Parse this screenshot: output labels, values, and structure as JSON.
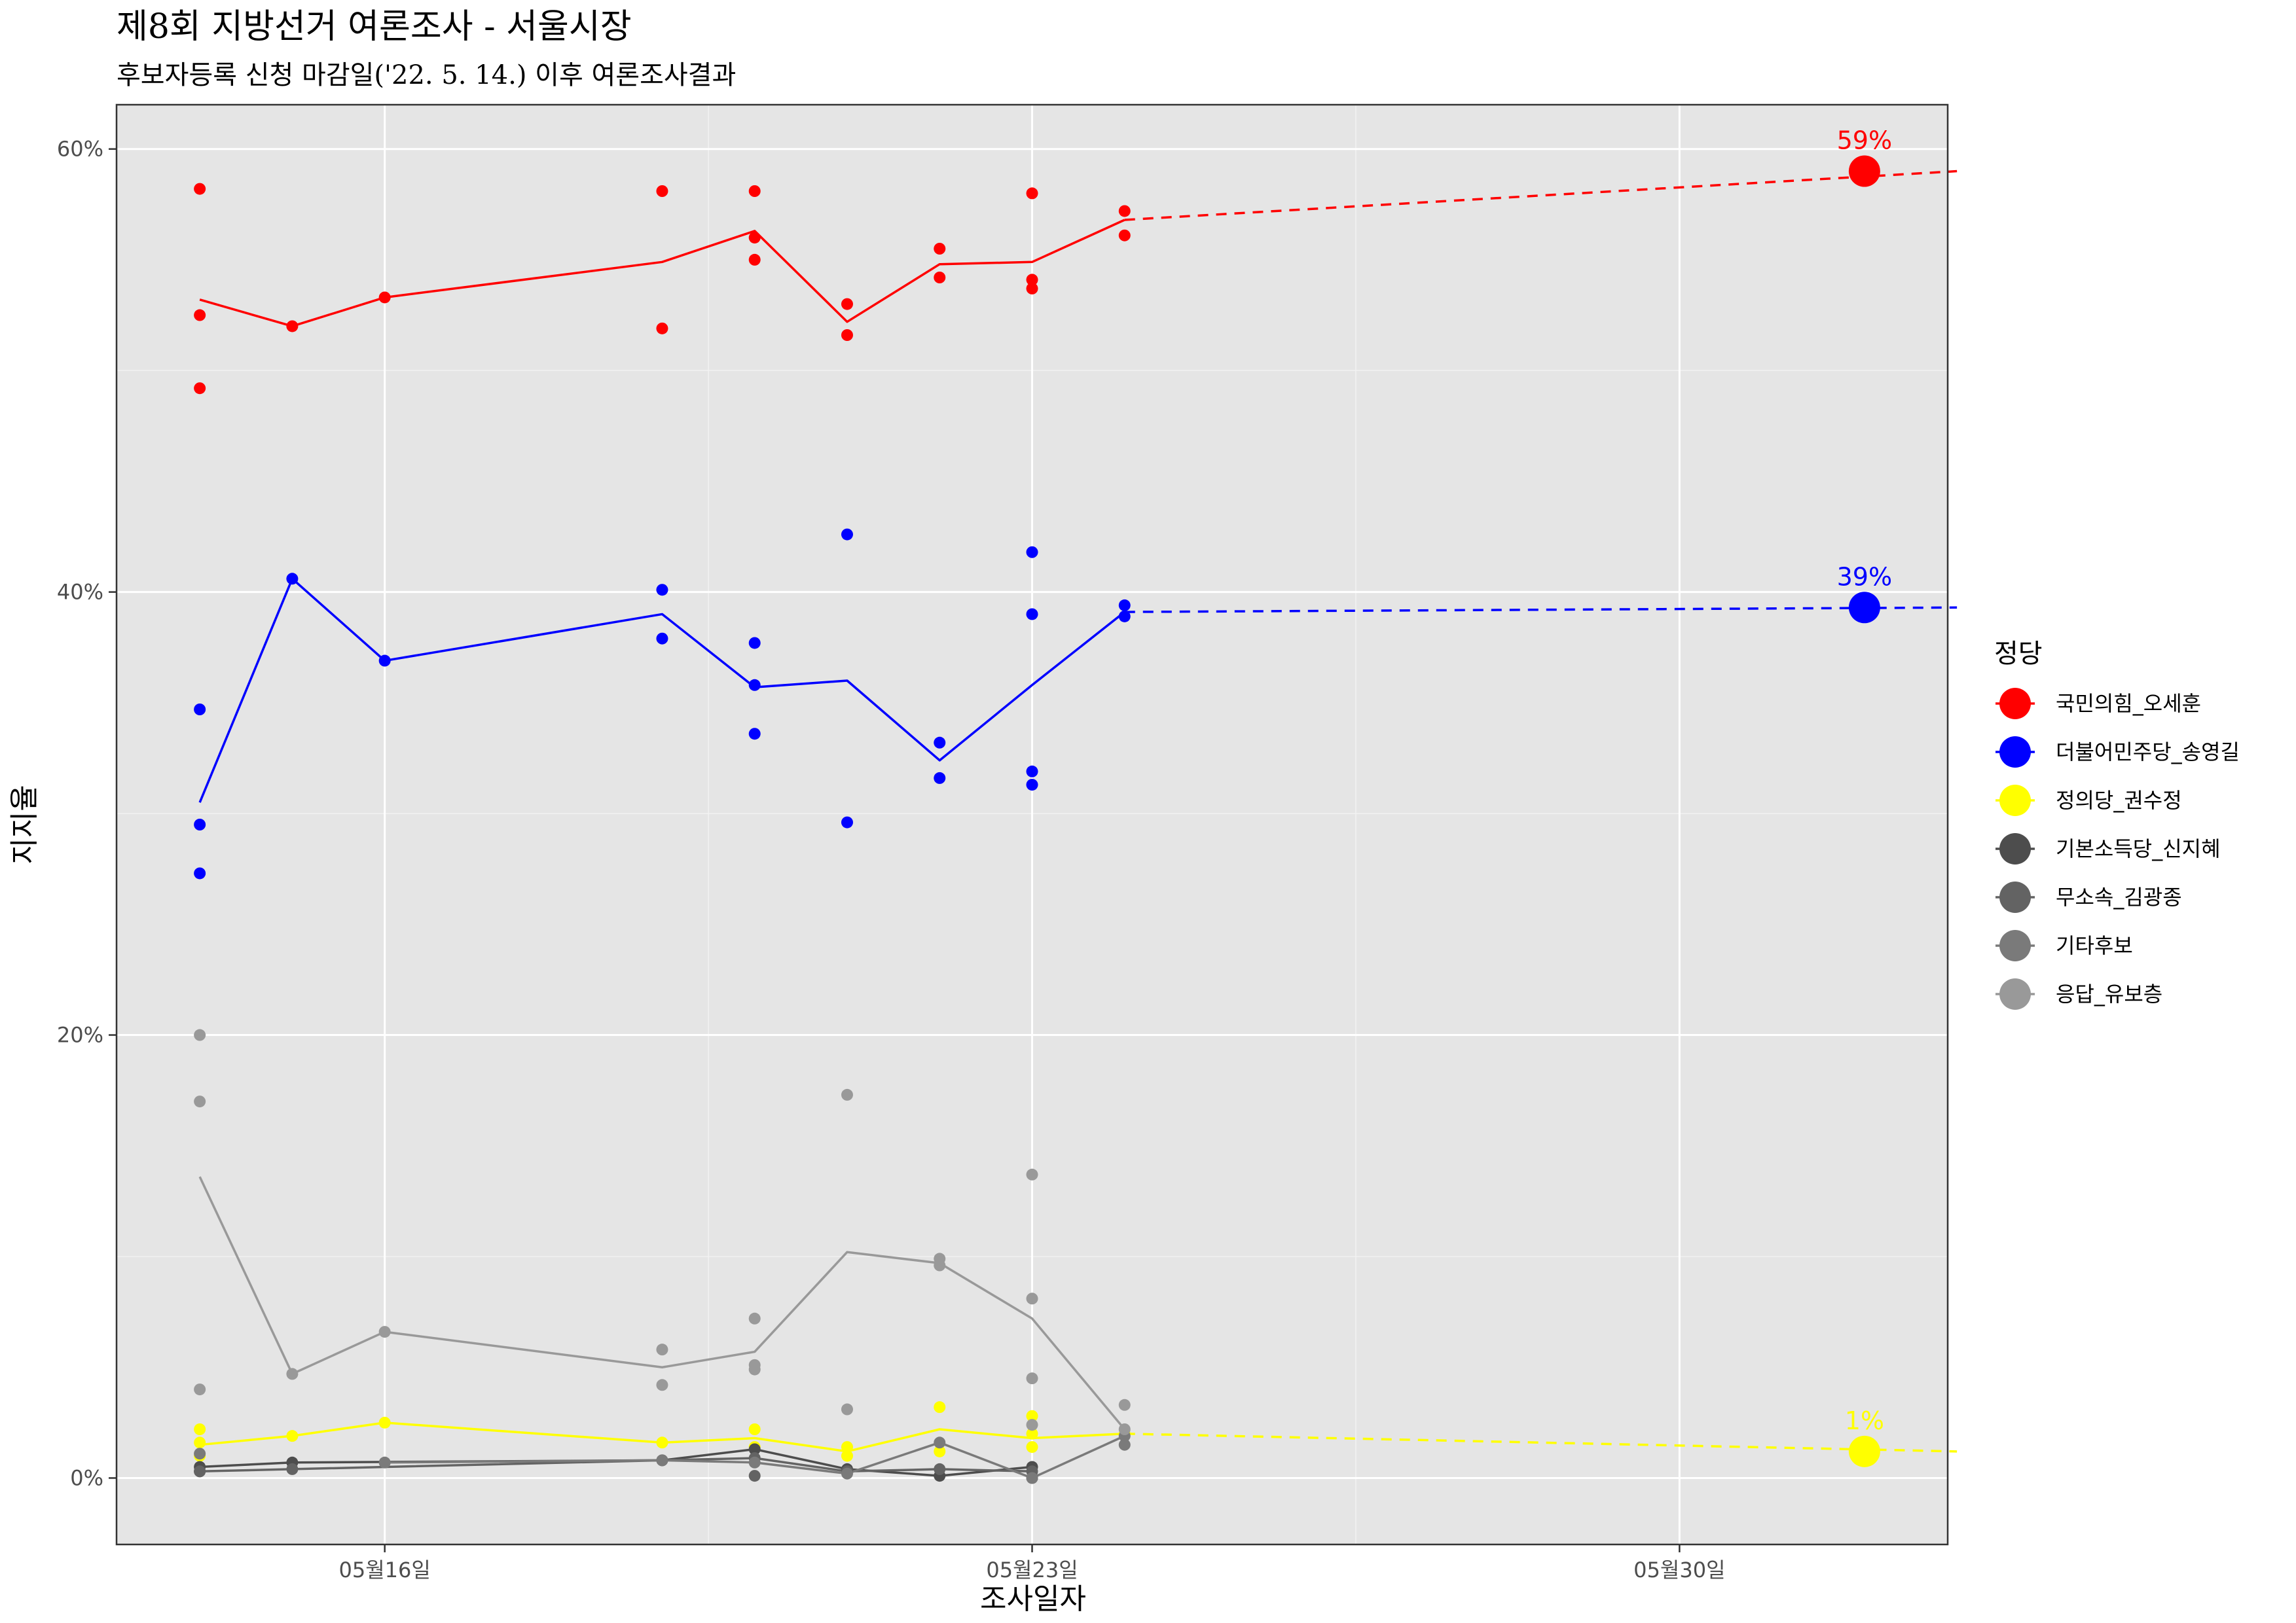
{
  "chart_data": {
    "type": "line",
    "title": "제8회 지방선거 여론조사 - 서울시장",
    "subtitle": "후보자등록 신청 마감일('22. 5. 14.) 이후 여론조사결과",
    "xlabel": "조사일자",
    "ylabel": "지지율",
    "x_ticks": [
      {
        "day": 16,
        "label": "05월16일"
      },
      {
        "day": 23,
        "label": "05월23일"
      },
      {
        "day": 30,
        "label": "05월30일"
      }
    ],
    "y_ticks": [
      {
        "value": 0,
        "label": "0%"
      },
      {
        "value": 20,
        "label": "20%"
      },
      {
        "value": 40,
        "label": "40%"
      },
      {
        "value": 60,
        "label": "60%"
      }
    ],
    "xlim": [
      13.1,
      32.9
    ],
    "ylim": [
      -3,
      62
    ],
    "grid": true,
    "legend_title": "정당",
    "legend_position": "right",
    "series": [
      {
        "name": "국민의힘_오세훈",
        "color": "#ff0000",
        "line": [
          [
            14,
            53.2
          ],
          [
            15,
            52.0
          ],
          [
            16,
            53.3
          ],
          [
            19,
            54.9
          ],
          [
            20,
            56.3
          ],
          [
            21,
            52.2
          ],
          [
            22,
            54.8
          ],
          [
            23,
            54.9
          ],
          [
            24,
            56.8
          ]
        ],
        "points": [
          [
            14,
            58.2
          ],
          [
            14,
            52.5
          ],
          [
            14,
            49.2
          ],
          [
            15,
            52.0
          ],
          [
            16,
            53.3
          ],
          [
            19,
            58.1
          ],
          [
            19,
            51.9
          ],
          [
            20,
            58.1
          ],
          [
            20,
            56.0
          ],
          [
            20,
            55.0
          ],
          [
            21,
            53.0
          ],
          [
            21,
            51.6
          ],
          [
            22,
            55.5
          ],
          [
            22,
            54.2
          ],
          [
            23,
            58.0
          ],
          [
            23,
            54.1
          ],
          [
            23,
            53.7
          ],
          [
            24,
            57.2
          ],
          [
            24,
            56.1
          ]
        ],
        "projection": [
          [
            24,
            56.8
          ],
          [
            33,
            59.0
          ]
        ],
        "end_value": 59.0,
        "end_label": "59%"
      },
      {
        "name": "더불어민주당_송영길",
        "color": "#0000ff",
        "line": [
          [
            14,
            30.5
          ],
          [
            15,
            40.6
          ],
          [
            16,
            36.9
          ],
          [
            19,
            39.0
          ],
          [
            20,
            35.7
          ],
          [
            21,
            36.0
          ],
          [
            22,
            32.4
          ],
          [
            23,
            35.8
          ],
          [
            24,
            39.1
          ]
        ],
        "points": [
          [
            14,
            34.7
          ],
          [
            14,
            29.5
          ],
          [
            14,
            27.3
          ],
          [
            15,
            40.6
          ],
          [
            16,
            36.9
          ],
          [
            19,
            40.1
          ],
          [
            19,
            37.9
          ],
          [
            20,
            37.7
          ],
          [
            20,
            35.8
          ],
          [
            20,
            33.6
          ],
          [
            21,
            42.6
          ],
          [
            21,
            29.6
          ],
          [
            22,
            33.2
          ],
          [
            22,
            31.6
          ],
          [
            23,
            41.8
          ],
          [
            23,
            39.0
          ],
          [
            23,
            31.9
          ],
          [
            23,
            31.3
          ],
          [
            24,
            39.4
          ],
          [
            24,
            38.9
          ]
        ],
        "projection": [
          [
            24,
            39.1
          ],
          [
            33,
            39.3
          ]
        ],
        "end_value": 39.3,
        "end_label": "39%"
      },
      {
        "name": "정의당_권수정",
        "color": "#ffff00",
        "line": [
          [
            14,
            1.5
          ],
          [
            15,
            1.9
          ],
          [
            16,
            2.5
          ],
          [
            19,
            1.6
          ],
          [
            20,
            1.8
          ],
          [
            21,
            1.2
          ],
          [
            22,
            2.2
          ],
          [
            23,
            1.8
          ],
          [
            24,
            2.0
          ]
        ],
        "points": [
          [
            14,
            2.2
          ],
          [
            14,
            1.6
          ],
          [
            14,
            1.0
          ],
          [
            15,
            1.9
          ],
          [
            16,
            2.5
          ],
          [
            19,
            1.6
          ],
          [
            20,
            2.2
          ],
          [
            20,
            1.4
          ],
          [
            21,
            1.4
          ],
          [
            21,
            1.0
          ],
          [
            22,
            3.2
          ],
          [
            22,
            1.2
          ],
          [
            23,
            2.8
          ],
          [
            23,
            2.0
          ],
          [
            23,
            1.4
          ],
          [
            24,
            2.0
          ]
        ],
        "projection": [
          [
            24,
            2.0
          ],
          [
            33,
            1.2
          ]
        ],
        "end_value": 1.2,
        "end_label": "1%"
      },
      {
        "name": "기본소득당_신지혜",
        "color": "#4d4d4d",
        "line": [
          [
            14,
            0.5
          ],
          [
            15,
            0.7
          ],
          [
            19,
            0.8
          ],
          [
            20,
            1.3
          ],
          [
            21,
            0.4
          ],
          [
            22,
            0.1
          ],
          [
            23,
            0.5
          ]
        ],
        "points": [
          [
            14,
            0.5
          ],
          [
            14,
            0.3
          ],
          [
            15,
            0.7
          ],
          [
            19,
            0.8
          ],
          [
            20,
            1.3
          ],
          [
            21,
            0.4
          ],
          [
            22,
            0.1
          ],
          [
            23,
            0.5
          ]
        ]
      },
      {
        "name": "무소속_김광종",
        "color": "#636363",
        "line": [
          [
            14,
            0.3
          ],
          [
            15,
            0.4
          ],
          [
            19,
            0.8
          ],
          [
            20,
            0.9
          ],
          [
            21,
            0.3
          ],
          [
            22,
            0.4
          ],
          [
            23,
            0.3
          ]
        ],
        "points": [
          [
            14,
            0.3
          ],
          [
            15,
            0.4
          ],
          [
            20,
            0.9
          ],
          [
            20,
            0.1
          ],
          [
            21,
            0.3
          ],
          [
            22,
            0.4
          ],
          [
            23,
            0.3
          ],
          [
            23,
            0.0
          ]
        ]
      },
      {
        "name": "기타후보",
        "color": "#7a7a7a",
        "line": [
          [
            16,
            0.7
          ],
          [
            19,
            0.8
          ],
          [
            20,
            0.7
          ],
          [
            21,
            0.2
          ],
          [
            22,
            1.6
          ],
          [
            23,
            0.0
          ],
          [
            24,
            1.9
          ]
        ],
        "points": [
          [
            14,
            1.1
          ],
          [
            16,
            0.7
          ],
          [
            19,
            0.8
          ],
          [
            20,
            0.7
          ],
          [
            21,
            0.2
          ],
          [
            22,
            1.6
          ],
          [
            23,
            0.0
          ],
          [
            24,
            1.9
          ],
          [
            24,
            1.5
          ]
        ]
      },
      {
        "name": "응답_유보층",
        "color": "#999999",
        "line": [
          [
            14,
            13.6
          ],
          [
            15,
            4.7
          ],
          [
            16,
            6.6
          ],
          [
            19,
            5.0
          ],
          [
            20,
            5.7
          ],
          [
            21,
            10.2
          ],
          [
            22,
            9.7
          ],
          [
            23,
            7.2
          ],
          [
            24,
            2.2
          ]
        ],
        "points": [
          [
            14,
            20.0
          ],
          [
            14,
            17.0
          ],
          [
            14,
            4.0
          ],
          [
            15,
            4.7
          ],
          [
            16,
            6.6
          ],
          [
            19,
            5.8
          ],
          [
            19,
            4.2
          ],
          [
            20,
            7.2
          ],
          [
            20,
            5.1
          ],
          [
            20,
            4.9
          ],
          [
            21,
            17.3
          ],
          [
            21,
            3.1
          ],
          [
            22,
            9.9
          ],
          [
            22,
            9.6
          ],
          [
            23,
            13.7
          ],
          [
            23,
            8.1
          ],
          [
            23,
            4.5
          ],
          [
            23,
            2.4
          ],
          [
            24,
            3.3
          ],
          [
            24,
            2.2
          ]
        ]
      }
    ]
  }
}
